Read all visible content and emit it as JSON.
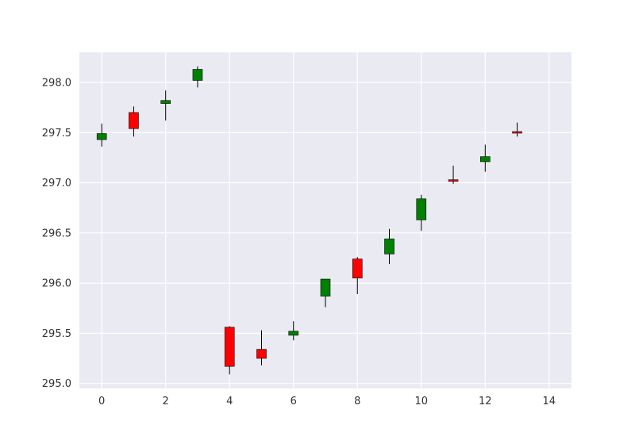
{
  "chart_data": {
    "type": "candlestick",
    "title": "",
    "xlabel": "",
    "ylabel": "",
    "xlim": [
      -0.7,
      14.7
    ],
    "ylim": [
      294.95,
      298.3
    ],
    "x_ticks": [
      0,
      2,
      4,
      6,
      8,
      10,
      12,
      14
    ],
    "x_tick_labels": [
      "0",
      "2",
      "4",
      "6",
      "8",
      "10",
      "12",
      "14"
    ],
    "y_ticks": [
      295.0,
      295.5,
      296.0,
      296.5,
      297.0,
      297.5,
      298.0
    ],
    "y_tick_labels": [
      "295.0",
      "295.5",
      "296.0",
      "296.5",
      "297.0",
      "297.5",
      "298.0"
    ],
    "grid": true,
    "background_color": "#EAEAF2",
    "up_color": "#008000",
    "down_color": "#FF0000",
    "candles": [
      {
        "x": 0,
        "open": 297.43,
        "high": 297.59,
        "low": 297.36,
        "close": 297.49
      },
      {
        "x": 1,
        "open": 297.7,
        "high": 297.76,
        "low": 297.46,
        "close": 297.54
      },
      {
        "x": 2,
        "open": 297.79,
        "high": 297.92,
        "low": 297.62,
        "close": 297.82
      },
      {
        "x": 3,
        "open": 298.02,
        "high": 298.16,
        "low": 297.95,
        "close": 298.13
      },
      {
        "x": 4,
        "open": 295.56,
        "high": 295.57,
        "low": 295.09,
        "close": 295.17
      },
      {
        "x": 5,
        "open": 295.34,
        "high": 295.53,
        "low": 295.18,
        "close": 295.25
      },
      {
        "x": 6,
        "open": 295.48,
        "high": 295.62,
        "low": 295.43,
        "close": 295.52
      },
      {
        "x": 7,
        "open": 295.87,
        "high": 296.04,
        "low": 295.76,
        "close": 296.04
      },
      {
        "x": 8,
        "open": 296.24,
        "high": 296.26,
        "low": 295.89,
        "close": 296.05
      },
      {
        "x": 9,
        "open": 296.29,
        "high": 296.54,
        "low": 296.19,
        "close": 296.44
      },
      {
        "x": 10,
        "open": 296.63,
        "high": 296.88,
        "low": 296.52,
        "close": 296.84
      },
      {
        "x": 11,
        "open": 297.03,
        "high": 297.17,
        "low": 296.99,
        "close": 297.02
      },
      {
        "x": 12,
        "open": 297.21,
        "high": 297.38,
        "low": 297.11,
        "close": 297.26
      },
      {
        "x": 13,
        "open": 297.51,
        "high": 297.6,
        "low": 297.46,
        "close": 297.5
      }
    ]
  }
}
